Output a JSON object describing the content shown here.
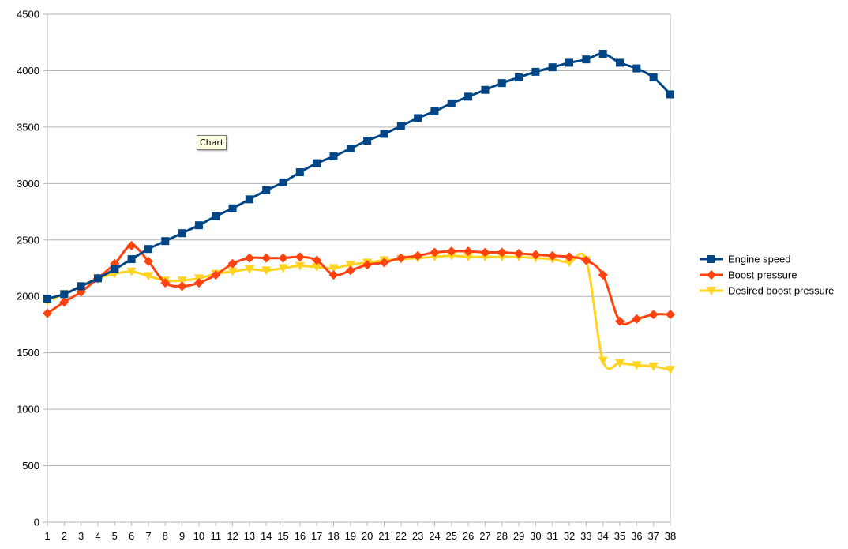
{
  "tooltip": {
    "text": "Chart"
  },
  "chart_data": {
    "type": "line",
    "x": [
      1,
      2,
      3,
      4,
      5,
      6,
      7,
      8,
      9,
      10,
      11,
      12,
      13,
      14,
      15,
      16,
      17,
      18,
      19,
      20,
      21,
      22,
      23,
      24,
      25,
      26,
      27,
      28,
      29,
      30,
      31,
      32,
      33,
      34,
      35,
      36,
      37,
      38
    ],
    "ylim": [
      0,
      4500
    ],
    "yticks": [
      0,
      500,
      1000,
      1500,
      2000,
      2500,
      3000,
      3500,
      4000,
      4500
    ],
    "grid": "horizontal",
    "legend": "right",
    "smooth": true,
    "series": [
      {
        "name": "Engine speed",
        "color": "#004586",
        "marker": "square",
        "values": [
          1980,
          2020,
          2090,
          2160,
          2240,
          2330,
          2420,
          2490,
          2560,
          2630,
          2710,
          2780,
          2860,
          2940,
          3010,
          3100,
          3180,
          3240,
          3310,
          3380,
          3440,
          3510,
          3580,
          3640,
          3710,
          3770,
          3830,
          3890,
          3940,
          3990,
          4030,
          4070,
          4100,
          4150,
          4070,
          4020,
          3940,
          3790
        ]
      },
      {
        "name": "Boost pressure",
        "color": "#ff420e",
        "marker": "diamond",
        "values": [
          1850,
          1950,
          2040,
          2160,
          2290,
          2450,
          2310,
          2120,
          2090,
          2120,
          2190,
          2290,
          2340,
          2340,
          2340,
          2350,
          2320,
          2190,
          2230,
          2280,
          2300,
          2340,
          2360,
          2390,
          2400,
          2400,
          2390,
          2390,
          2380,
          2370,
          2360,
          2350,
          2320,
          2190,
          1780,
          1800,
          1840,
          1840
        ]
      },
      {
        "name": "Desired boost pressure",
        "color": "#ffd320",
        "marker": "triangle-down",
        "values": [
          1960,
          2020,
          2090,
          2160,
          2200,
          2220,
          2180,
          2140,
          2140,
          2160,
          2200,
          2220,
          2240,
          2230,
          2250,
          2270,
          2260,
          2250,
          2280,
          2300,
          2320,
          2330,
          2340,
          2350,
          2360,
          2350,
          2350,
          2350,
          2350,
          2340,
          2330,
          2300,
          2320,
          1430,
          1410,
          1390,
          1380,
          1350
        ]
      }
    ]
  }
}
